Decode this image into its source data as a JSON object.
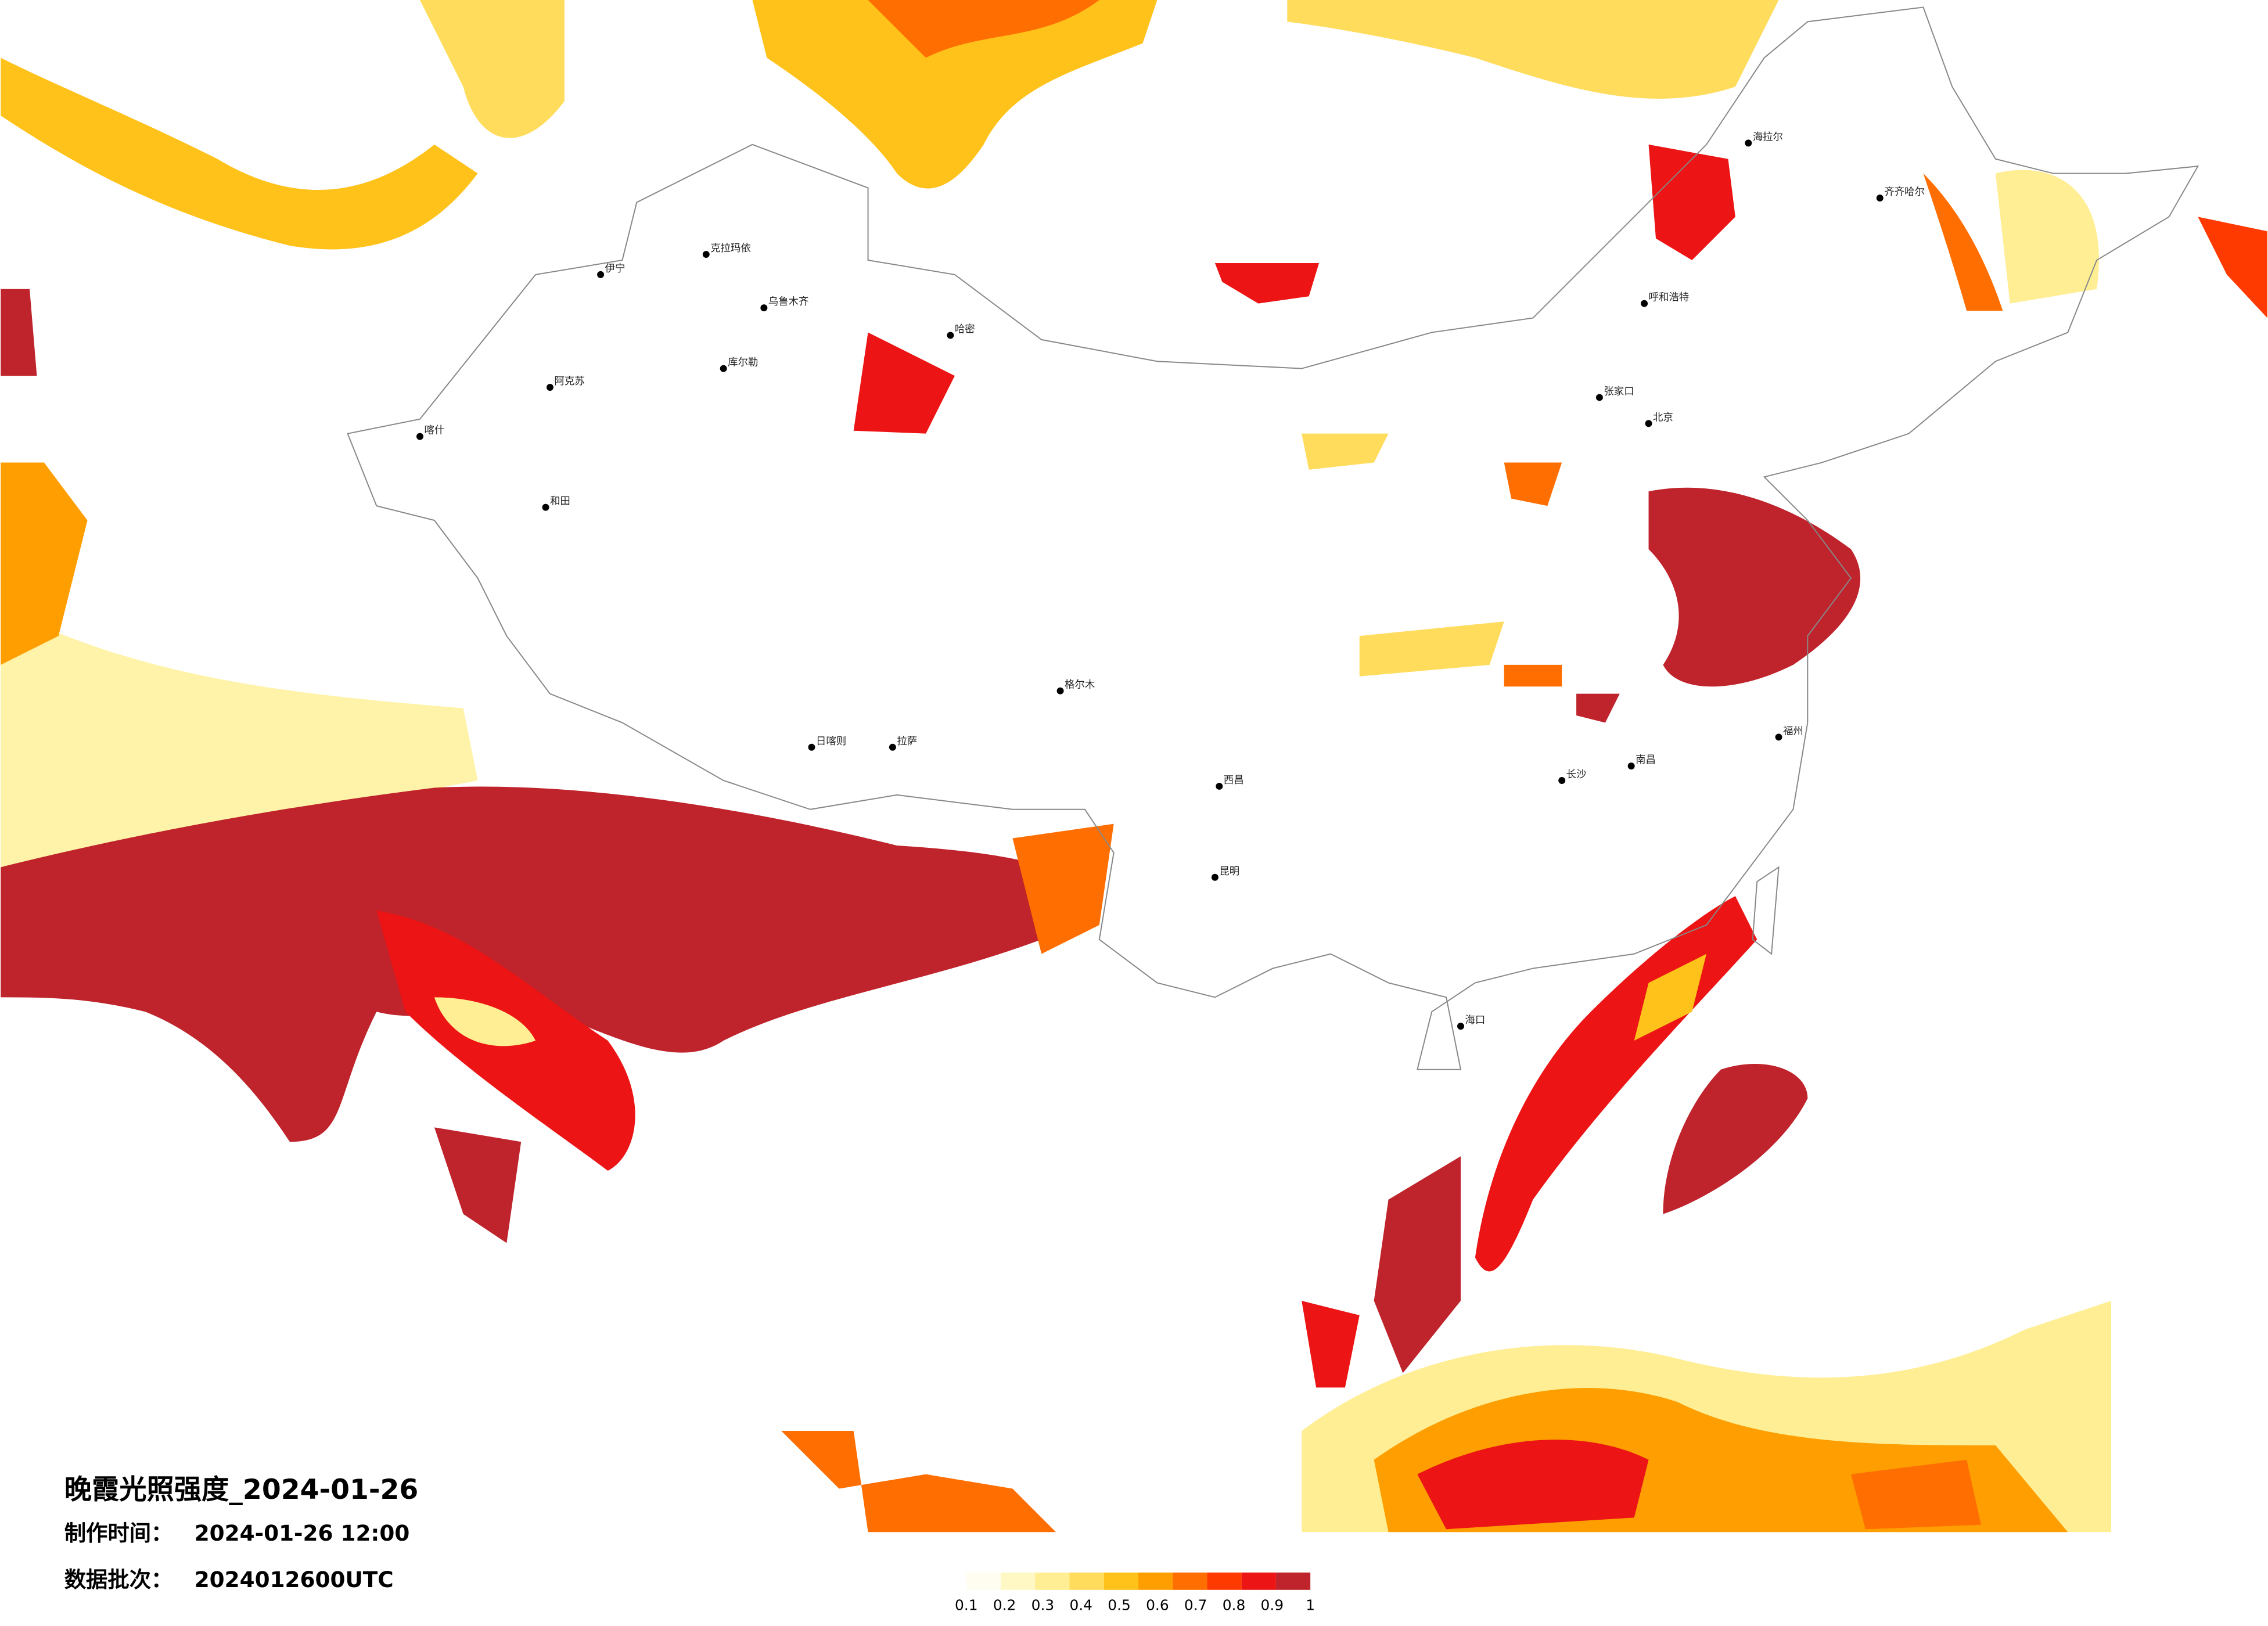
{
  "title": "晚霞光照强度_2024-01-26",
  "production_time": {
    "label": "制作时间：",
    "value": "2024-01-26 12:00"
  },
  "data_batch": {
    "label": "数据批次：",
    "value": "2024012600UTC"
  },
  "colorbar": {
    "labels": [
      0.1,
      0.2,
      0.3,
      0.4,
      0.5,
      0.6,
      0.7,
      0.8,
      0.9,
      1
    ],
    "colors": [
      "#fffdf0",
      "#fff8c4",
      "#ffee94",
      "#ffdc5c",
      "#ffc21a",
      "#ff9e00",
      "#ff6e00",
      "#ff3a00",
      "#ec1414",
      "#bf232b"
    ]
  },
  "cities": [
    "克拉玛依",
    "乌鲁木齐",
    "哈密",
    "伊宁",
    "阿克苏",
    "喀什",
    "和田",
    "库尔勒",
    "格尔木",
    "拉萨",
    "日喀则",
    "海拉尔",
    "齐齐哈尔",
    "呼和浩特",
    "张家口",
    "北京",
    "南昌",
    "海口",
    "昆明",
    "西昌",
    "长沙",
    "福州"
  ]
}
